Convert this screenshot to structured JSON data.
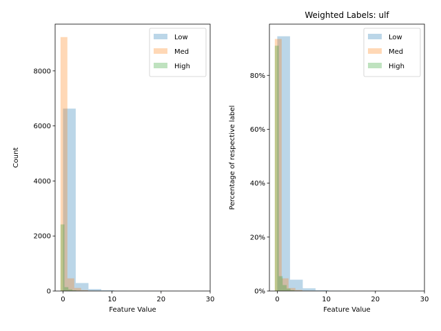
{
  "figure": {
    "background": "#ffffff"
  },
  "chart_data": [
    {
      "type": "bar",
      "title": "",
      "xlabel": "Feature Value",
      "ylabel": "Count",
      "xlim": [
        -1.6,
        30
      ],
      "ylim": [
        0,
        9700
      ],
      "xticks": [
        0,
        10,
        20,
        30
      ],
      "xtick_labels": [
        "0",
        "10",
        "20",
        "30"
      ],
      "yticks": [
        0,
        2000,
        4000,
        6000,
        8000
      ],
      "ytick_labels": [
        "0",
        "2000",
        "4000",
        "6000",
        "8000"
      ],
      "legend": {
        "position": "top-right",
        "entries": [
          "Low",
          "Med",
          "High"
        ]
      },
      "grid": false,
      "series": [
        {
          "name": "Low",
          "color": "#1f77b4",
          "alpha": 0.3,
          "bin_edges": [
            0,
            2.6,
            5.2,
            7.8,
            10.4,
            13.0,
            15.6,
            18.2,
            20.8,
            23.4,
            26.0,
            28.6
          ],
          "values": [
            6630,
            290,
            70,
            25,
            8,
            4,
            2,
            1,
            1,
            0,
            0
          ]
        },
        {
          "name": "Med",
          "color": "#ff7f0e",
          "alpha": 0.3,
          "bin_edges": [
            -0.5,
            0.9,
            2.3,
            3.7,
            5.1,
            6.5,
            7.9,
            9.3,
            10.7
          ],
          "values": [
            9230,
            460,
            110,
            35,
            12,
            5,
            2,
            1
          ]
        },
        {
          "name": "High",
          "color": "#2ca02c",
          "alpha": 0.3,
          "bin_edges": [
            -0.5,
            0.3,
            1.1,
            1.9,
            2.7,
            3.5,
            4.3,
            5.1
          ],
          "values": [
            2420,
            140,
            60,
            25,
            10,
            5,
            2
          ]
        }
      ]
    },
    {
      "type": "bar",
      "title": "Weighted Labels: ulf",
      "xlabel": "Feature Value",
      "ylabel": "Percentage of respective label",
      "xlim": [
        -1.6,
        30
      ],
      "ylim": [
        0,
        0.99
      ],
      "xticks": [
        0,
        10,
        20,
        30
      ],
      "xtick_labels": [
        "0",
        "10",
        "20",
        "30"
      ],
      "yticks": [
        0,
        0.2,
        0.4,
        0.6,
        0.8
      ],
      "ytick_labels": [
        "0%",
        "20%",
        "40%",
        "60%",
        "80%"
      ],
      "legend": {
        "position": "top-right",
        "entries": [
          "Low",
          "Med",
          "High"
        ]
      },
      "grid": false,
      "series": [
        {
          "name": "Low",
          "color": "#1f77b4",
          "alpha": 0.3,
          "bin_edges": [
            0,
            2.6,
            5.2,
            7.8,
            10.4,
            13.0,
            15.6,
            18.2,
            20.8,
            23.4,
            26.0,
            28.6
          ],
          "values": [
            0.945,
            0.042,
            0.01,
            0.003,
            0.001,
            0.0005,
            0.0003,
            0.0002,
            0.0001,
            0,
            0
          ]
        },
        {
          "name": "Med",
          "color": "#ff7f0e",
          "alpha": 0.3,
          "bin_edges": [
            -0.5,
            0.9,
            2.3,
            3.7,
            5.1,
            6.5,
            7.9,
            9.3,
            10.7
          ],
          "values": [
            0.935,
            0.047,
            0.011,
            0.004,
            0.0012,
            0.0005,
            0.0002,
            0.0001
          ]
        },
        {
          "name": "High",
          "color": "#2ca02c",
          "alpha": 0.3,
          "bin_edges": [
            -0.5,
            0.3,
            1.1,
            1.9,
            2.7,
            3.5,
            4.3,
            5.1
          ],
          "values": [
            0.91,
            0.055,
            0.022,
            0.009,
            0.003,
            0.001,
            0.0005
          ]
        }
      ]
    }
  ]
}
